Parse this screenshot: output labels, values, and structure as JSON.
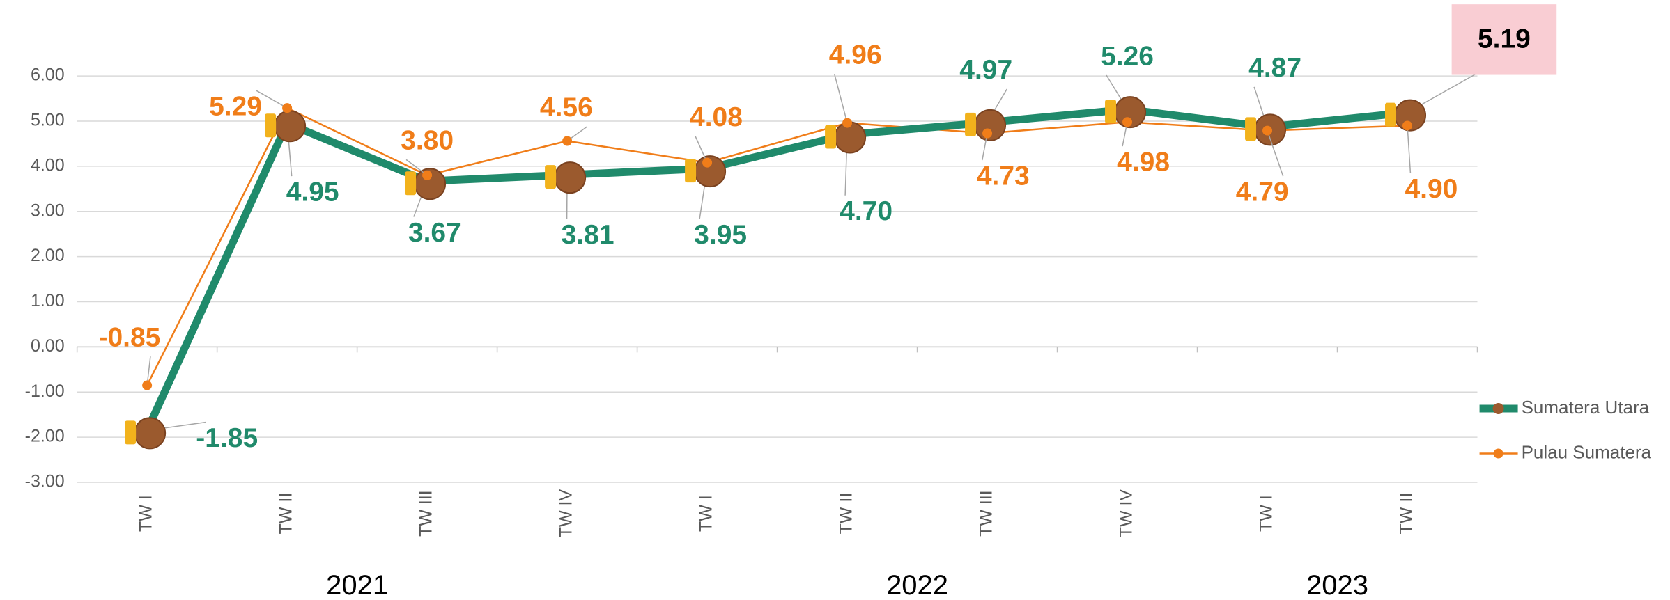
{
  "chart_data": {
    "type": "line",
    "categories": [
      "TW I",
      "TW II",
      "TW III",
      "TW IV",
      "TW I",
      "TW II",
      "TW III",
      "TW IV",
      "TW I",
      "TW II"
    ],
    "year_groups": [
      {
        "label": "2021",
        "count": 4
      },
      {
        "label": "2022",
        "count": 4
      },
      {
        "label": "2023",
        "count": 2
      }
    ],
    "series": [
      {
        "name": "Sumatera Utara",
        "color": "#208a6b",
        "marker_color": "#9b5a2e",
        "values": [
          -1.85,
          4.95,
          3.67,
          3.81,
          3.95,
          4.7,
          4.97,
          5.26,
          4.87,
          5.19
        ],
        "value_labels": [
          "-1.85",
          "4.95",
          "3.67",
          "3.81",
          "3.95",
          "4.70",
          "4.97",
          "5.26",
          "4.87",
          "5.19"
        ]
      },
      {
        "name": "Pulau Sumatera",
        "color": "#f07d19",
        "values": [
          -0.85,
          5.29,
          3.8,
          4.56,
          4.08,
          4.96,
          4.73,
          4.98,
          4.79,
          4.9
        ],
        "value_labels": [
          "-0.85",
          "5.29",
          "3.80",
          "4.56",
          "4.08",
          "4.96",
          "4.73",
          "4.98",
          "4.79",
          "4.90"
        ]
      }
    ],
    "ylim": [
      -3,
      6
    ],
    "yticks": [
      {
        "value": -3,
        "label": "-3.00"
      },
      {
        "value": -2,
        "label": "-2.00"
      },
      {
        "value": -1,
        "label": "-1.00"
      },
      {
        "value": 0,
        "label": "0.00"
      },
      {
        "value": 1,
        "label": "1.00"
      },
      {
        "value": 2,
        "label": "2.00"
      },
      {
        "value": 3,
        "label": "3.00"
      },
      {
        "value": 4,
        "label": "4.00"
      },
      {
        "value": 5,
        "label": "5.00"
      },
      {
        "value": 6,
        "label": "6.00"
      }
    ],
    "grid": true,
    "legend": "right"
  }
}
